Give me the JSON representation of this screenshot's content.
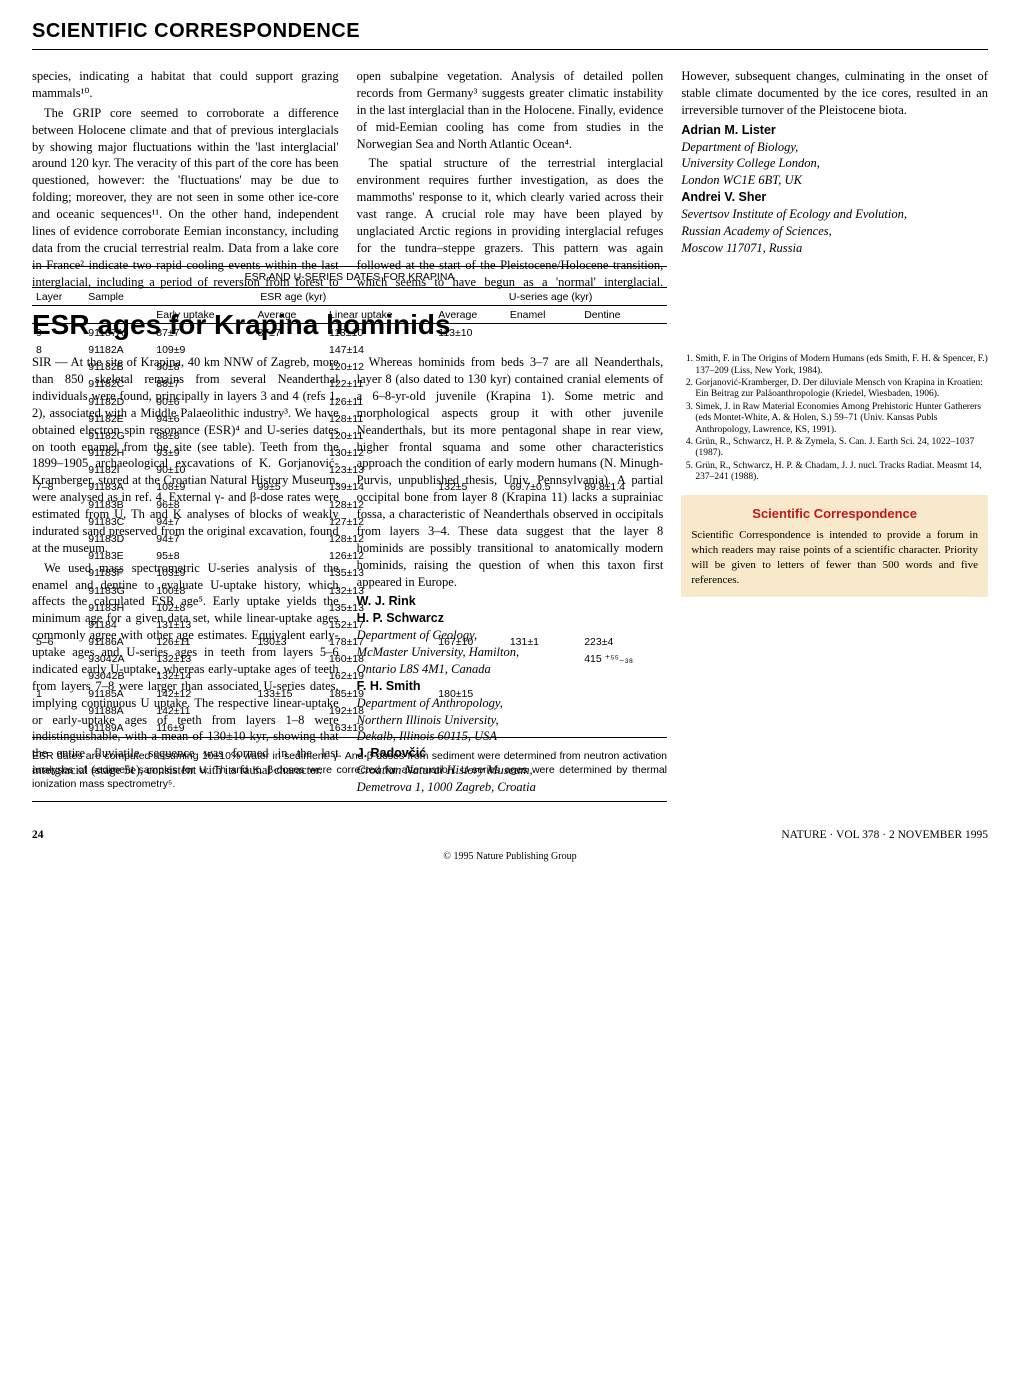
{
  "section_header": "SCIENTIFIC CORRESPONDENCE",
  "article1": {
    "p1": "species, indicating a habitat that could support grazing mammals¹⁰.",
    "p2": "The GRIP core seemed to corroborate a difference between Holocene climate and that of previous interglacials by showing major fluctuations within the 'last interglacial' around 120 kyr. The veracity of this part of the core has been questioned, however: the 'fluctuations' may be due to folding; moreover, they are not seen in some other ice-core and oceanic sequences¹¹. On the other hand, independent lines of evidence corroborate Eemian inconstancy, including data from the crucial terrestrial realm. Data from a lake core in France² indicate two rapid cooling events within the last interglacial, including a period of reversion from forest to open subalpine vegetation. Analysis of detailed pollen records from Germany³ suggests greater climatic instability in the last interglacial than in the Holocene. Finally, evidence of mid-Eemian cooling has come from studies in the Norwegian Sea and North Atlantic Ocean⁴.",
    "p3": "The spatial structure of the terrestrial interglacial environment requires further investigation, as does the mammoths' response to it, which clearly varied across their vast range. A crucial role may have been played by unglaciated Arctic regions in providing interglacial refuges for the tundra–steppe grazers. This pattern was again followed at the start of the Pleistocene/Holocene transition, which seems to have begun as a 'normal' interglacial. However, subsequent changes, culminating in the onset of stable climate documented by the ice cores, resulted in an irreversible turnover of the Pleistocene biota.",
    "author1_name": "Adrian M. Lister",
    "author1_affil": "Department of Biology,\nUniversity College London,\nLondon WC1E 6BT, UK",
    "author2_name": "Andrei V. Sher",
    "author2_affil": "Severtsov Institute of Ecology and Evolution,\nRussian Academy of Sciences,\nMoscow 117071, Russia"
  },
  "article2": {
    "title": "ESR ages for Krapina hominids",
    "p1": "SIR — At the site of Krapina, 40 km NNW of Zagreb, more than 850 skeletal remains from several Neanderthal individuals were found, principally in layers 3 and 4 (refs 1, 2), associated with a Middle Palaeolithic industry³. We have obtained electron spin resonance (ESR)⁴ and U-series dates on tooth enamel from the site (see table). Teeth from the 1899–1905 archaeological excavations of K. Gorjanović-Kramberger, stored at the Croatian Natural History Museum, were analysed as in ref. 4. External γ- and β-dose rates were estimated from U, Th and K analyses of blocks of weakly indurated sand preserved from the original excavation, found at the museum.",
    "p2": "We used mass spectrometric U-series analysis of the enamel and dentine to evaluate U-uptake history, which affects the calculated ESR age⁵. Early uptake yields the minimum age for a given data set, while linear-uptake ages commonly agree with other age estimates. Equivalent early-uptake ages and U-series ages in teeth from layers 5–6 indicated early U-uptake, whereas early-uptake ages of teeth from layers 7–8 were larger than associated U-series dates, implying continuous U uptake. The respective linear-uptake or early-uptake ages of teeth from layers 1–8 were indistinguishable, with a mean of 130±10 kyr, showing that the entire fluviatile sequence was formed in the last interglacial (stage 5e), consistent with its faunal character.",
    "p3": "Whereas hominids from beds 3–7 are all Neanderthals, layer 8 (also dated to 130 kyr) contained cranial elements of a 6–8-yr-old juvenile (Krapina 1). Some metric and morphological aspects group it with other juvenile Neanderthals, but its more pentagonal shape in rear view, higher frontal squama and some other characteristics approach the condition of early modern humans (N. Minugh-Purvis, unpublished thesis, Univ. Pennsylvania). A partial occipital bone from layer 8 (Krapina 11) lacks a suprainiac fossa, a characteristic of Neanderthals observed in occipitals from layers 3–4. These data suggest that the layer 8 hominids are possibly transitional to anatomically modern hominids, raising the question of when this taxon first appeared in Europe.",
    "auth_a": "W. J. Rink",
    "auth_b": "H. P. Schwarcz",
    "affil_ab": "Department of Geology,\nMcMaster University, Hamilton,\nOntario L8S 4M1, Canada",
    "auth_c": "F. H. Smith",
    "affil_c": "Department of Anthropology,\nNorthern Illinois University,\nDekalb, Illinois 60115, USA",
    "auth_d": "J. Radovčić",
    "affil_d": "Croatian Natural History Museum,\nDemetrova 1, 1000 Zagreb, Croatia",
    "refs": [
      "Smith, F. in The Origins of Modern Humans (eds Smith, F. H. & Spencer, F.) 137–209 (Liss, New York, 1984).",
      "Gorjanović-Kramberger, D. Der diluviale Mensch von Krapina in Kroatien: Ein Beitrag zur Paläoanthropologie (Kriedel, Wiesbaden, 1906).",
      "Simek, J. in Raw Material Economies Among Prehistoric Hunter Gatherers (eds Montet-White, A. & Holen, S.) 59–71 (Univ. Kansas Publs Anthropology, Lawrence, KS, 1991).",
      "Grün, R., Schwarcz, H. P. & Zymela, S. Can. J. Earth Sci. 24, 1022–1037 (1987).",
      "Grün, R., Schwarcz, H. P. & Chadam, J. J. nucl. Tracks Radiat. Measmt 14, 237–241 (1988)."
    ]
  },
  "table": {
    "title": "ESR AND U-SERIES DATES FOR KRAPINA",
    "head_layer": "Layer",
    "head_sample": "Sample",
    "head_esr": "ESR age (kyr)",
    "head_useries": "U-series age (kyr)",
    "sub_early": "Early uptake",
    "sub_avg1": "Average",
    "sub_lin": "Linear uptake",
    "sub_avg2": "Average",
    "sub_enamel": "Enamel",
    "sub_dentine": "Dentine",
    "rows": [
      {
        "layer": "9",
        "sample": "91187A",
        "eu": "87±7",
        "a1": "87±7",
        "lu": "113±10",
        "a2": "113±10",
        "en": "",
        "de": ""
      },
      {
        "layer": "8",
        "sample": "91182A",
        "eu": "109±9",
        "a1": "",
        "lu": "147±14",
        "a2": "",
        "en": "",
        "de": ""
      },
      {
        "layer": "",
        "sample": "91182B",
        "eu": "90±8",
        "a1": "",
        "lu": "120±12",
        "a2": "",
        "en": "",
        "de": ""
      },
      {
        "layer": "",
        "sample": "91182C",
        "eu": "88±7",
        "a1": "",
        "lu": "122±11",
        "a2": "",
        "en": "",
        "de": ""
      },
      {
        "layer": "",
        "sample": "91182D",
        "eu": "90±6",
        "a1": "",
        "lu": "126±11",
        "a2": "",
        "en": "",
        "de": ""
      },
      {
        "layer": "",
        "sample": "91182E",
        "eu": "94±6",
        "a1": "",
        "lu": "128±11",
        "a2": "",
        "en": "",
        "de": ""
      },
      {
        "layer": "",
        "sample": "91182G",
        "eu": "88±8",
        "a1": "",
        "lu": "120±11",
        "a2": "",
        "en": "",
        "de": ""
      },
      {
        "layer": "",
        "sample": "91182H",
        "eu": "93±9",
        "a1": "",
        "lu": "130±12",
        "a2": "",
        "en": "",
        "de": ""
      },
      {
        "layer": "",
        "sample": "91182I",
        "eu": "90±10",
        "a1": "",
        "lu": "123±13",
        "a2": "",
        "en": "",
        "de": ""
      },
      {
        "layer": "7–8",
        "sample": "91183A",
        "eu": "108±9",
        "a1": "99±5",
        "lu": "139±14",
        "a2": "132±5",
        "en": "69.7±0.5",
        "de": "89.8±1.4"
      },
      {
        "layer": "",
        "sample": "91183B",
        "eu": "96±8",
        "a1": "",
        "lu": "128±12",
        "a2": "",
        "en": "",
        "de": ""
      },
      {
        "layer": "",
        "sample": "91183C",
        "eu": "94±7",
        "a1": "",
        "lu": "127±12",
        "a2": "",
        "en": "",
        "de": ""
      },
      {
        "layer": "",
        "sample": "91183D",
        "eu": "94±7",
        "a1": "",
        "lu": "128±12",
        "a2": "",
        "en": "",
        "de": ""
      },
      {
        "layer": "",
        "sample": "91183E",
        "eu": "95±8",
        "a1": "",
        "lu": "126±12",
        "a2": "",
        "en": "",
        "de": ""
      },
      {
        "layer": "",
        "sample": "91183F",
        "eu": "103±9",
        "a1": "",
        "lu": "135±13",
        "a2": "",
        "en": "",
        "de": ""
      },
      {
        "layer": "",
        "sample": "91183G",
        "eu": "100±8",
        "a1": "",
        "lu": "132±13",
        "a2": "",
        "en": "",
        "de": ""
      },
      {
        "layer": "",
        "sample": "91183H",
        "eu": "102±8",
        "a1": "",
        "lu": "135±13",
        "a2": "",
        "en": "",
        "de": ""
      },
      {
        "layer": "",
        "sample": "91184",
        "eu": "131±13",
        "a1": "",
        "lu": "152±17",
        "a2": "",
        "en": "",
        "de": ""
      },
      {
        "layer": "5–6",
        "sample": "91186A",
        "eu": "126±11",
        "a1": "130±3",
        "lu": "178±17",
        "a2": "167±10",
        "en": "131±1",
        "de": "223±4"
      },
      {
        "layer": "",
        "sample": "93042A",
        "eu": "132±13",
        "a1": "",
        "lu": "160±18",
        "a2": "",
        "en": "",
        "de": "415 ⁺⁵⁵₋₃₈"
      },
      {
        "layer": "",
        "sample": "93042B",
        "eu": "132±14",
        "a1": "",
        "lu": "162±19",
        "a2": "",
        "en": "",
        "de": ""
      },
      {
        "layer": "1",
        "sample": "91185A",
        "eu": "142±12",
        "a1": "133±15",
        "lu": "185±19",
        "a2": "180±15",
        "en": "",
        "de": ""
      },
      {
        "layer": "",
        "sample": "91188A",
        "eu": "142±11",
        "a1": "",
        "lu": "192±18",
        "a2": "",
        "en": "",
        "de": ""
      },
      {
        "layer": "",
        "sample": "91189A",
        "eu": "116±9",
        "a1": "",
        "lu": "163±16",
        "a2": "",
        "en": "",
        "de": ""
      }
    ],
    "caption": "ESR dates are computed assuming 10±10% water in sediment. γ- And β-doses from sediment were determined from neutron activation analyses of sediment samples for U, Th and K. β-doses were corrected for attenuation. U-series ages were determined by thermal ionization mass spectrometry⁵."
  },
  "sci_corr": {
    "title": "Scientific Correspondence",
    "body": "Scientific Correspondence is intended to provide a forum in which readers may raise points of a scientific character. Priority will be given to letters of fewer than 500 words and five references."
  },
  "footer": {
    "page": "24",
    "src": "NATURE · VOL 378 · 2 NOVEMBER 1995",
    "copyright": "© 1995 Nature Publishing Group"
  },
  "colors": {
    "box_bg": "#f7e9c9",
    "box_title": "#c01818"
  }
}
